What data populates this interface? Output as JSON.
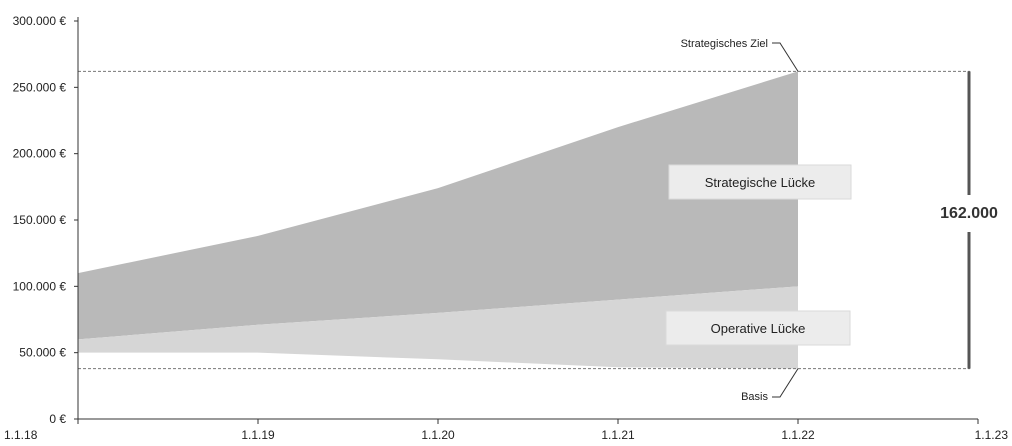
{
  "chart_data": {
    "type": "area",
    "x": [
      "1.1.18",
      "1.1.19",
      "1.1.20",
      "1.1.21",
      "1.1.22",
      "1.1.23"
    ],
    "y_ticks": [
      "0 €",
      "50.000 €",
      "100.000 €",
      "150.000 €",
      "200.000 €",
      "250.000 €",
      "300.000 €"
    ],
    "ylim": [
      0,
      300000
    ],
    "bands": [
      {
        "name": "Strategische Lücke",
        "color": "#b9b9b9",
        "x": [
          "1.1.18",
          "1.1.19",
          "1.1.20",
          "1.1.21",
          "1.1.22"
        ],
        "upper": [
          110000,
          138000,
          174000,
          220000,
          262000
        ],
        "lower": [
          60000,
          71000,
          80000,
          90000,
          100000
        ]
      },
      {
        "name": "Operative Lücke",
        "color": "#d6d6d6",
        "x": [
          "1.1.18",
          "1.1.19",
          "1.1.20",
          "1.1.21",
          "1.1.22"
        ],
        "upper": [
          60000,
          71000,
          80000,
          90000,
          100000
        ],
        "lower": [
          50000,
          50000,
          45000,
          39000,
          38000
        ]
      }
    ],
    "reference_lines": [
      {
        "label": "Strategisches Ziel",
        "value": 262000
      },
      {
        "label": "Basis",
        "value": 38000
      }
    ],
    "gap_label": "162.000",
    "labels": {
      "strategic_gap": "Strategische Lücke",
      "operative_gap": "Operative Lücke"
    },
    "colors": {
      "axis": "#333333",
      "dashed": "#777777",
      "label_box": "#ececec",
      "bracket": "#555555"
    }
  }
}
